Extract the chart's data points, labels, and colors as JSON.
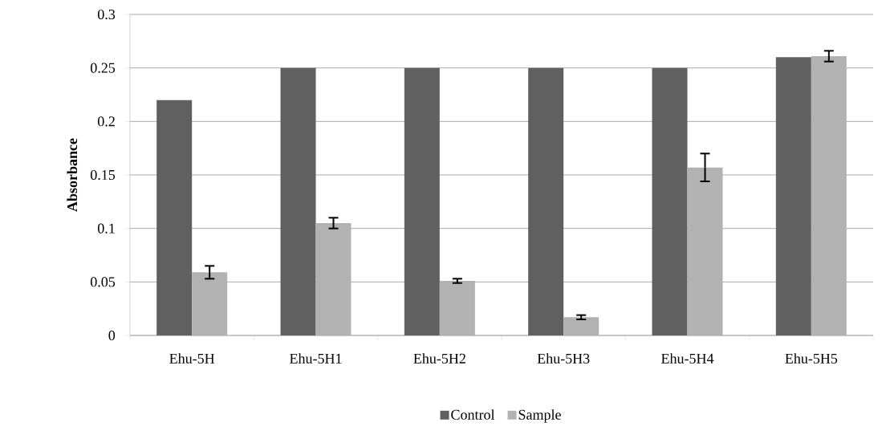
{
  "chart_data": {
    "type": "bar",
    "ylabel": "Absorbance",
    "categories": [
      "Ehu-5H",
      "Ehu-5H1",
      "Ehu-5H2",
      "Ehu-5H3",
      "Ehu-5H4",
      "Ehu-5H5"
    ],
    "series": [
      {
        "name": "Control",
        "color": "#606060",
        "values": [
          0.22,
          0.25,
          0.25,
          0.25,
          0.25,
          0.26
        ]
      },
      {
        "name": "Sample",
        "color": "#b2b2b2",
        "values": [
          0.059,
          0.105,
          0.051,
          0.017,
          0.157,
          0.261
        ],
        "errors": [
          0.006,
          0.005,
          0.002,
          0.002,
          0.013,
          0.005
        ]
      }
    ],
    "ylim": [
      0,
      0.3
    ],
    "yticks": [
      0,
      0.05,
      0.1,
      0.15,
      0.2,
      0.25,
      0.3
    ],
    "grid": "y",
    "legend": "bottom"
  }
}
